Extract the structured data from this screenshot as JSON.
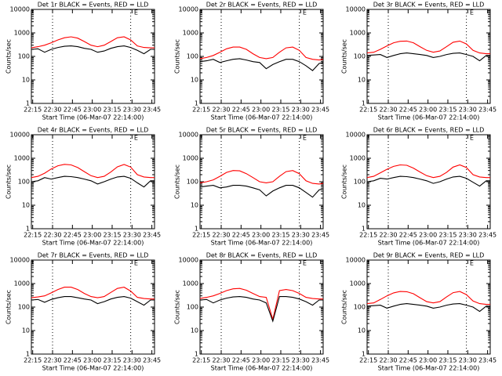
{
  "chart_data": [
    {
      "type": "line",
      "title": "Det 1r BLACK = Events, RED = LLD",
      "xlabel": "Start Time (06-Mar-07 22:14:00)",
      "ylabel": "Counts/sec",
      "log_y": true,
      "x": [
        "22:14",
        "22:19",
        "22:24",
        "22:29",
        "22:34",
        "22:39",
        "22:44",
        "22:49",
        "22:54",
        "22:59",
        "23:04",
        "23:09",
        "23:14",
        "23:19",
        "23:24",
        "23:29",
        "23:34",
        "23:39",
        "23:44",
        "23:47"
      ],
      "xlim": [
        "22:14",
        "23:47"
      ],
      "xticks": [
        "22:15",
        "22:30",
        "22:45",
        "23:00",
        "23:15",
        "23:30",
        "23:45"
      ],
      "ylim": [
        1,
        10000
      ],
      "yticks": [
        1,
        10,
        100,
        1000,
        10000
      ],
      "vlines": [
        "22:30",
        "23:29"
      ],
      "annotations": [
        {
          "text": "E",
          "x": "23:33"
        }
      ],
      "series": [
        {
          "color": "#ff0000",
          "values": [
            230,
            260,
            300,
            380,
            500,
            620,
            680,
            600,
            430,
            300,
            260,
            300,
            430,
            620,
            680,
            500,
            280,
            240,
            230,
            230
          ]
        },
        {
          "color": "#000000",
          "values": [
            200,
            210,
            150,
            200,
            240,
            270,
            280,
            260,
            220,
            200,
            150,
            170,
            220,
            260,
            280,
            240,
            180,
            130,
            200,
            200
          ]
        }
      ]
    },
    {
      "type": "line",
      "title": "Det 2r BLACK = Events, RED = LLD",
      "xlabel": "Start Time (06-Mar-07 22:14:00)",
      "ylabel": "Counts/sec",
      "log_y": true,
      "x": [
        "22:14",
        "22:19",
        "22:24",
        "22:29",
        "22:34",
        "22:39",
        "22:44",
        "22:49",
        "22:54",
        "22:59",
        "23:04",
        "23:09",
        "23:14",
        "23:19",
        "23:24",
        "23:29",
        "23:34",
        "23:39",
        "23:44",
        "23:47"
      ],
      "xlim": [
        "22:14",
        "23:47"
      ],
      "xticks": [
        "22:15",
        "22:30",
        "22:45",
        "23:00",
        "23:15",
        "23:30",
        "23:45"
      ],
      "ylim": [
        1,
        10000
      ],
      "yticks": [
        1,
        10,
        100,
        1000,
        10000
      ],
      "vlines": [
        "22:30",
        "23:29"
      ],
      "annotations": [
        {
          "text": "E",
          "x": "23:33"
        }
      ],
      "series": [
        {
          "color": "#ff0000",
          "values": [
            80,
            90,
            110,
            150,
            210,
            250,
            250,
            200,
            130,
            90,
            80,
            90,
            150,
            230,
            250,
            180,
            90,
            75,
            70,
            75
          ]
        },
        {
          "color": "#000000",
          "values": [
            60,
            65,
            75,
            55,
            65,
            75,
            80,
            70,
            60,
            55,
            30,
            45,
            60,
            75,
            75,
            60,
            40,
            25,
            50,
            55
          ]
        }
      ]
    },
    {
      "type": "line",
      "title": "Det 3r BLACK = Events, RED = LLD",
      "xlabel": "Start Time (06-Mar-07 22:14:00)",
      "ylabel": "Counts/sec",
      "log_y": true,
      "x": [
        "22:14",
        "22:19",
        "22:24",
        "22:29",
        "22:34",
        "22:39",
        "22:44",
        "22:49",
        "22:54",
        "22:59",
        "23:04",
        "23:09",
        "23:14",
        "23:19",
        "23:24",
        "23:29",
        "23:34",
        "23:39",
        "23:44",
        "23:47"
      ],
      "xlim": [
        "22:14",
        "23:47"
      ],
      "xticks": [
        "22:15",
        "22:30",
        "22:45",
        "23:00",
        "23:15",
        "23:30",
        "23:45"
      ],
      "ylim": [
        1,
        10000
      ],
      "yticks": [
        1,
        10,
        100,
        1000,
        10000
      ],
      "vlines": [
        "22:30",
        "23:29"
      ],
      "annotations": [
        {
          "text": "E",
          "x": "23:33"
        }
      ],
      "series": [
        {
          "color": "#ff0000",
          "values": [
            140,
            150,
            200,
            280,
            380,
            440,
            450,
            380,
            260,
            180,
            150,
            170,
            260,
            400,
            450,
            340,
            180,
            140,
            130,
            130
          ]
        },
        {
          "color": "#000000",
          "values": [
            110,
            115,
            120,
            90,
            110,
            130,
            140,
            130,
            120,
            110,
            90,
            100,
            120,
            135,
            140,
            120,
            100,
            65,
            110,
            110
          ]
        }
      ]
    },
    {
      "type": "line",
      "title": "Det 4r BLACK = Events, RED = LLD",
      "xlabel": "Start Time (06-Mar-07 22:14:00)",
      "ylabel": "Counts/sec",
      "log_y": true,
      "x": [
        "22:14",
        "22:19",
        "22:24",
        "22:29",
        "22:34",
        "22:39",
        "22:44",
        "22:49",
        "22:54",
        "22:59",
        "23:04",
        "23:09",
        "23:14",
        "23:19",
        "23:24",
        "23:29",
        "23:34",
        "23:39",
        "23:44",
        "23:47"
      ],
      "xlim": [
        "22:14",
        "23:47"
      ],
      "xticks": [
        "22:15",
        "22:30",
        "22:45",
        "23:00",
        "23:15",
        "23:30",
        "23:45"
      ],
      "ylim": [
        1,
        10000
      ],
      "yticks": [
        1,
        10,
        100,
        1000,
        10000
      ],
      "vlines": [
        "22:30",
        "23:29"
      ],
      "annotations": [
        {
          "text": "E",
          "x": "23:33"
        }
      ],
      "series": [
        {
          "color": "#ff0000",
          "values": [
            150,
            170,
            230,
            350,
            480,
            550,
            520,
            400,
            270,
            180,
            150,
            170,
            260,
            430,
            540,
            420,
            200,
            160,
            150,
            150
          ]
        },
        {
          "color": "#000000",
          "values": [
            100,
            110,
            150,
            130,
            150,
            170,
            165,
            150,
            130,
            110,
            80,
            100,
            130,
            160,
            170,
            140,
            90,
            60,
            110,
            110
          ]
        }
      ]
    },
    {
      "type": "line",
      "title": "Det 5r BLACK = Events, RED = LLD",
      "xlabel": "Start Time (06-Mar-07 22:14:00)",
      "ylabel": "Counts/sec",
      "log_y": true,
      "x": [
        "22:14",
        "22:19",
        "22:24",
        "22:29",
        "22:34",
        "22:39",
        "22:44",
        "22:49",
        "22:54",
        "22:59",
        "23:04",
        "23:09",
        "23:14",
        "23:19",
        "23:24",
        "23:29",
        "23:34",
        "23:39",
        "23:44",
        "23:47"
      ],
      "xlim": [
        "22:14",
        "23:47"
      ],
      "xticks": [
        "22:15",
        "22:30",
        "22:45",
        "23:00",
        "23:15",
        "23:30",
        "23:45"
      ],
      "ylim": [
        1,
        10000
      ],
      "yticks": [
        1,
        10,
        100,
        1000,
        10000
      ],
      "vlines": [
        "22:30",
        "23:29"
      ],
      "annotations": [
        {
          "text": "E",
          "x": "23:33"
        }
      ],
      "series": [
        {
          "color": "#ff0000",
          "values": [
            90,
            100,
            120,
            170,
            250,
            300,
            290,
            220,
            150,
            100,
            90,
            100,
            170,
            270,
            300,
            220,
            110,
            85,
            80,
            85
          ]
        },
        {
          "color": "#000000",
          "values": [
            60,
            65,
            70,
            55,
            60,
            70,
            70,
            65,
            55,
            45,
            25,
            40,
            55,
            70,
            70,
            55,
            35,
            22,
            45,
            50
          ]
        }
      ]
    },
    {
      "type": "line",
      "title": "Det 6r BLACK = Events, RED = LLD",
      "xlabel": "Start Time (06-Mar-07 22:14:00)",
      "ylabel": "Counts/sec",
      "log_y": true,
      "x": [
        "22:14",
        "22:19",
        "22:24",
        "22:29",
        "22:34",
        "22:39",
        "22:44",
        "22:49",
        "22:54",
        "22:59",
        "23:04",
        "23:09",
        "23:14",
        "23:19",
        "23:24",
        "23:29",
        "23:34",
        "23:39",
        "23:44",
        "23:47"
      ],
      "xlim": [
        "22:14",
        "23:47"
      ],
      "xticks": [
        "22:15",
        "22:30",
        "22:45",
        "23:00",
        "23:15",
        "23:30",
        "23:45"
      ],
      "ylim": [
        1,
        10000
      ],
      "yticks": [
        1,
        10,
        100,
        1000,
        10000
      ],
      "vlines": [
        "22:30",
        "23:29"
      ],
      "annotations": [
        {
          "text": "E",
          "x": "23:33"
        }
      ],
      "series": [
        {
          "color": "#ff0000",
          "values": [
            150,
            170,
            240,
            340,
            450,
            520,
            500,
            380,
            260,
            180,
            150,
            170,
            250,
            420,
            520,
            400,
            200,
            160,
            150,
            150
          ]
        },
        {
          "color": "#000000",
          "values": [
            100,
            110,
            140,
            130,
            150,
            170,
            165,
            150,
            130,
            110,
            85,
            100,
            130,
            160,
            170,
            140,
            95,
            65,
            110,
            110
          ]
        }
      ]
    },
    {
      "type": "line",
      "title": "Det 7r BLACK = Events, RED = LLD",
      "xlabel": "Start Time (06-Mar-07 22:14:00)",
      "ylabel": "Counts/sec",
      "log_y": true,
      "x": [
        "22:14",
        "22:19",
        "22:24",
        "22:29",
        "22:34",
        "22:39",
        "22:44",
        "22:49",
        "22:54",
        "22:59",
        "23:04",
        "23:09",
        "23:14",
        "23:19",
        "23:24",
        "23:29",
        "23:34",
        "23:39",
        "23:44",
        "23:47"
      ],
      "xlim": [
        "22:14",
        "23:47"
      ],
      "xticks": [
        "22:15",
        "22:30",
        "22:45",
        "23:00",
        "23:15",
        "23:30",
        "23:45"
      ],
      "ylim": [
        1,
        10000
      ],
      "yticks": [
        1,
        10,
        100,
        1000,
        10000
      ],
      "vlines": [
        "22:30",
        "23:29"
      ],
      "annotations": [
        {
          "text": "E",
          "x": "23:33"
        }
      ],
      "series": [
        {
          "color": "#ff0000",
          "values": [
            250,
            270,
            300,
            400,
            560,
            700,
            700,
            560,
            380,
            280,
            250,
            280,
            420,
            620,
            700,
            480,
            260,
            230,
            220,
            220
          ]
        },
        {
          "color": "#000000",
          "values": [
            200,
            210,
            160,
            210,
            250,
            280,
            280,
            250,
            220,
            200,
            140,
            170,
            220,
            260,
            280,
            240,
            170,
            120,
            200,
            200
          ]
        }
      ]
    },
    {
      "type": "line",
      "title": "Det 8r BLACK = Events, RED = LLD",
      "xlabel": "Start Time (06-Mar-07 22:14:00)",
      "ylabel": "Counts/sec",
      "log_y": true,
      "x": [
        "22:14",
        "22:19",
        "22:24",
        "22:29",
        "22:34",
        "22:39",
        "22:44",
        "22:49",
        "22:54",
        "22:59",
        "23:04",
        "23:09",
        "23:14",
        "23:19",
        "23:24",
        "23:29",
        "23:34",
        "23:39",
        "23:44",
        "23:47"
      ],
      "xlim": [
        "22:14",
        "23:47"
      ],
      "xticks": [
        "22:15",
        "22:30",
        "22:45",
        "23:00",
        "23:15",
        "23:30",
        "23:45"
      ],
      "ylim": [
        1,
        10000
      ],
      "yticks": [
        1,
        10,
        100,
        1000,
        10000
      ],
      "vlines": [
        "22:30",
        "23:29"
      ],
      "annotations": [
        {
          "text": "E",
          "x": "23:33"
        }
      ],
      "series": [
        {
          "color": "#ff0000",
          "values": [
            230,
            260,
            300,
            380,
            500,
            600,
            620,
            520,
            380,
            280,
            260,
            30,
            500,
            560,
            500,
            380,
            260,
            230,
            220,
            220
          ]
        },
        {
          "color": "#000000",
          "values": [
            200,
            210,
            150,
            200,
            240,
            270,
            280,
            260,
            220,
            200,
            150,
            25,
            280,
            280,
            260,
            220,
            170,
            120,
            200,
            200
          ]
        }
      ]
    },
    {
      "type": "line",
      "title": "Det 9r BLACK = Events, RED = LLD",
      "xlabel": "Start Time (06-Mar-07 22:14:00)",
      "ylabel": "Counts/sec",
      "log_y": true,
      "x": [
        "22:14",
        "22:19",
        "22:24",
        "22:29",
        "22:34",
        "22:39",
        "22:44",
        "22:49",
        "22:54",
        "22:59",
        "23:04",
        "23:09",
        "23:14",
        "23:19",
        "23:24",
        "23:29",
        "23:34",
        "23:39",
        "23:44",
        "23:47"
      ],
      "xlim": [
        "22:14",
        "23:47"
      ],
      "xticks": [
        "22:15",
        "22:30",
        "22:45",
        "23:00",
        "23:15",
        "23:30",
        "23:45"
      ],
      "ylim": [
        1,
        10000
      ],
      "yticks": [
        1,
        10,
        100,
        1000,
        10000
      ],
      "vlines": [
        "22:30",
        "23:29"
      ],
      "annotations": [
        {
          "text": "E",
          "x": "23:33"
        }
      ],
      "series": [
        {
          "color": "#ff0000",
          "values": [
            140,
            150,
            210,
            300,
            400,
            460,
            450,
            370,
            250,
            170,
            150,
            170,
            270,
            410,
            460,
            340,
            180,
            140,
            130,
            130
          ]
        },
        {
          "color": "#000000",
          "values": [
            110,
            115,
            120,
            90,
            110,
            130,
            140,
            130,
            120,
            110,
            90,
            100,
            120,
            135,
            140,
            120,
            100,
            65,
            110,
            110
          ]
        }
      ]
    }
  ]
}
